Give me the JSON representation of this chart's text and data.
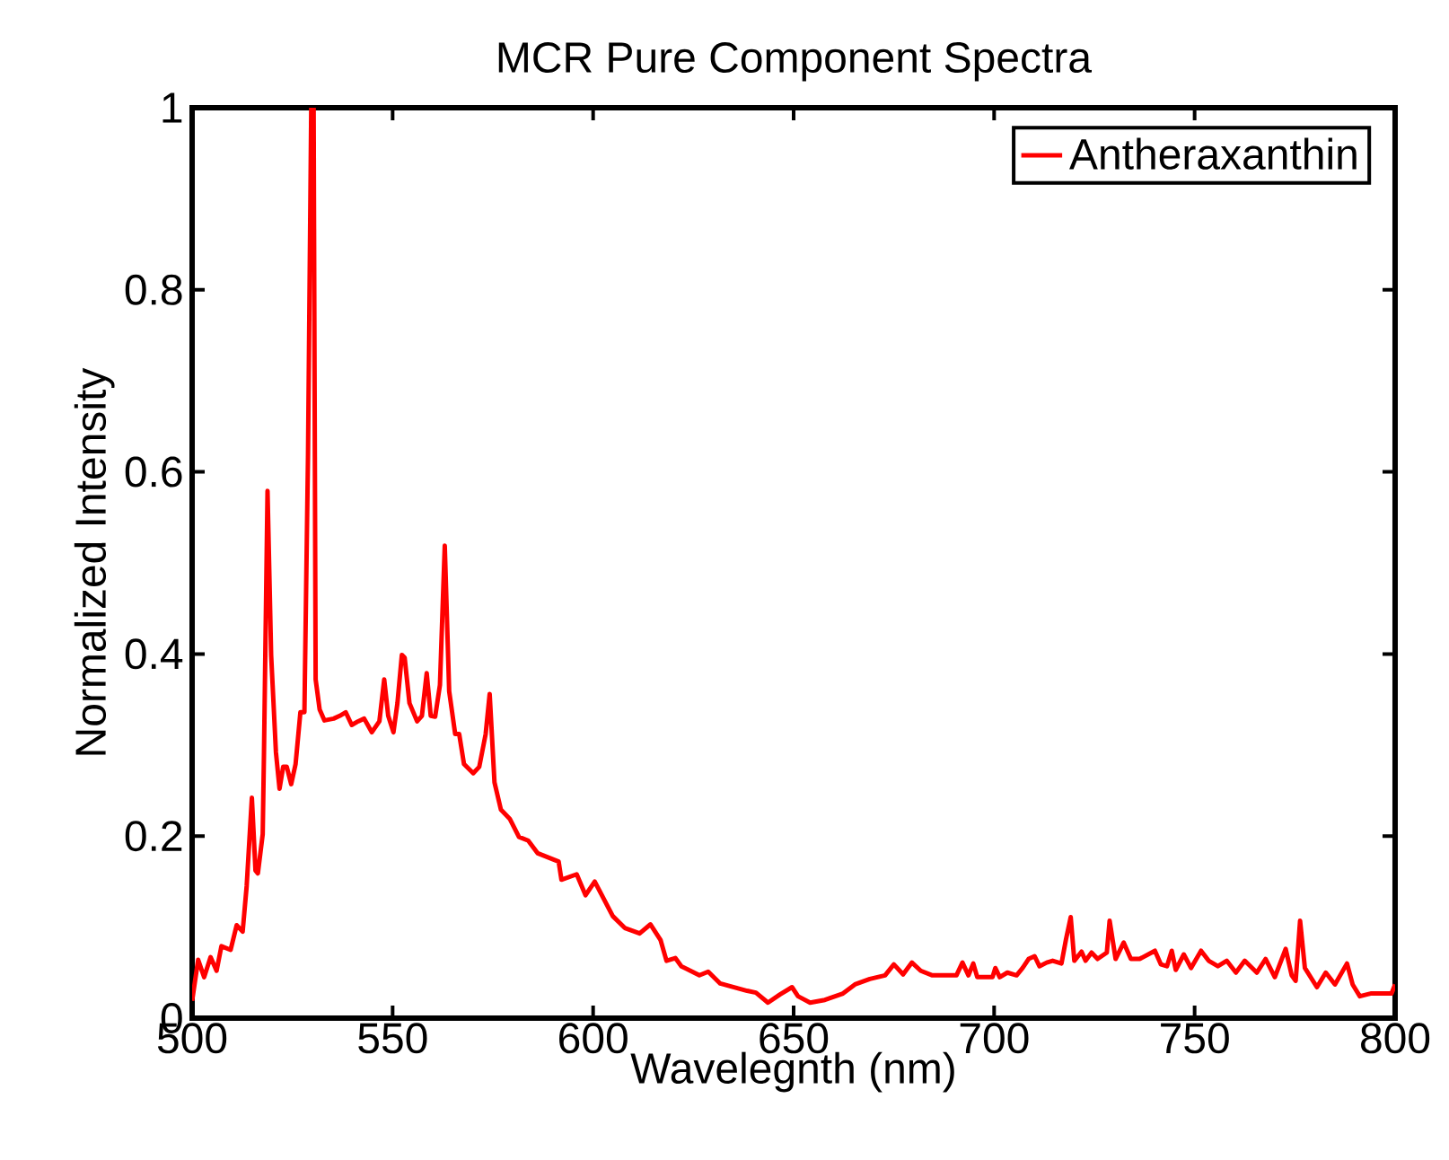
{
  "chart_data": {
    "type": "line",
    "title": "MCR Pure Component Spectra",
    "xlabel": "Wavelegnth (nm)",
    "ylabel": "Normalized Intensity",
    "xlim": [
      500,
      800
    ],
    "ylim": [
      0,
      1
    ],
    "xticks": [
      500,
      550,
      600,
      650,
      700,
      750,
      800
    ],
    "yticks": [
      0,
      0.2,
      0.4,
      0.6,
      0.8,
      1
    ],
    "grid": false,
    "legend": "top right",
    "series": [
      {
        "name": "Antheraxanthin",
        "color": "#ff0000",
        "x": [
          500.0,
          501.5,
          503.0,
          504.6,
          506.1,
          507.3,
          509.6,
          511.1,
          512.6,
          513.6,
          514.9,
          515.8,
          516.4,
          517.6,
          517.9,
          518.8,
          519.7,
          520.9,
          521.8,
          522.7,
          523.6,
          524.7,
          525.8,
          527.0,
          528.0,
          528.9,
          529.7,
          530.3,
          530.8,
          531.8,
          533.0,
          535.3,
          536.8,
          538.3,
          539.8,
          541.4,
          542.9,
          544.8,
          546.7,
          547.9,
          548.9,
          550.2,
          551.2,
          552.3,
          553.0,
          554.2,
          556.1,
          557.3,
          558.5,
          559.5,
          560.6,
          561.8,
          563.0,
          564.1,
          565.6,
          566.6,
          567.8,
          570.1,
          571.6,
          573.2,
          574.2,
          575.4,
          577.0,
          579.2,
          581.5,
          583.8,
          586.2,
          591.4,
          592.1,
          595.9,
          598.1,
          600.4,
          604.9,
          607.9,
          611.6,
          614.3,
          616.8,
          618.3,
          620.5,
          622.0,
          626.5,
          628.7,
          631.7,
          638.4,
          640.6,
          643.6,
          646.6,
          649.6,
          651.1,
          654.1,
          657.8,
          662.3,
          665.3,
          669.0,
          672.8,
          675.0,
          677.3,
          679.5,
          681.7,
          684.6,
          690.6,
          692.1,
          693.6,
          694.8,
          695.8,
          699.6,
          700.3,
          701.4,
          703.3,
          705.6,
          707.1,
          708.6,
          710.1,
          711.3,
          713.1,
          714.6,
          716.8,
          717.9,
          719.1,
          720.0,
          721.8,
          722.8,
          724.3,
          725.8,
          728.1,
          728.8,
          730.3,
          732.3,
          734.1,
          736.3,
          740.1,
          741.6,
          743.1,
          744.3,
          745.3,
          747.3,
          749.1,
          751.6,
          753.5,
          755.8,
          758.0,
          760.3,
          762.5,
          765.5,
          767.7,
          770.0,
          772.7,
          774.2,
          775.2,
          776.3,
          777.5,
          780.5,
          782.7,
          785.0,
          788.0,
          789.4,
          791.2,
          793.9,
          799.1,
          800.0
        ],
        "values": [
          0.019,
          0.064,
          0.045,
          0.067,
          0.052,
          0.079,
          0.075,
          0.102,
          0.095,
          0.145,
          0.242,
          0.162,
          0.159,
          0.202,
          0.286,
          0.579,
          0.399,
          0.292,
          0.252,
          0.276,
          0.276,
          0.257,
          0.279,
          0.336,
          0.336,
          0.619,
          1.0,
          1.0,
          0.372,
          0.339,
          0.327,
          0.329,
          0.332,
          0.336,
          0.322,
          0.326,
          0.329,
          0.314,
          0.326,
          0.372,
          0.332,
          0.314,
          0.346,
          0.399,
          0.396,
          0.346,
          0.326,
          0.332,
          0.379,
          0.332,
          0.331,
          0.366,
          0.519,
          0.359,
          0.312,
          0.312,
          0.279,
          0.269,
          0.276,
          0.312,
          0.356,
          0.259,
          0.229,
          0.219,
          0.199,
          0.195,
          0.181,
          0.172,
          0.152,
          0.158,
          0.135,
          0.15,
          0.112,
          0.099,
          0.093,
          0.103,
          0.086,
          0.063,
          0.066,
          0.057,
          0.047,
          0.051,
          0.038,
          0.03,
          0.028,
          0.017,
          0.026,
          0.034,
          0.024,
          0.017,
          0.02,
          0.027,
          0.037,
          0.043,
          0.047,
          0.059,
          0.048,
          0.061,
          0.052,
          0.047,
          0.047,
          0.061,
          0.047,
          0.06,
          0.045,
          0.045,
          0.055,
          0.045,
          0.05,
          0.047,
          0.055,
          0.065,
          0.068,
          0.057,
          0.061,
          0.063,
          0.06,
          0.086,
          0.111,
          0.063,
          0.073,
          0.063,
          0.072,
          0.065,
          0.072,
          0.107,
          0.065,
          0.083,
          0.065,
          0.065,
          0.074,
          0.059,
          0.057,
          0.074,
          0.053,
          0.07,
          0.055,
          0.074,
          0.063,
          0.057,
          0.063,
          0.05,
          0.063,
          0.05,
          0.065,
          0.045,
          0.076,
          0.047,
          0.041,
          0.107,
          0.055,
          0.034,
          0.05,
          0.037,
          0.06,
          0.037,
          0.024,
          0.027,
          0.027,
          0.037
        ]
      }
    ]
  }
}
